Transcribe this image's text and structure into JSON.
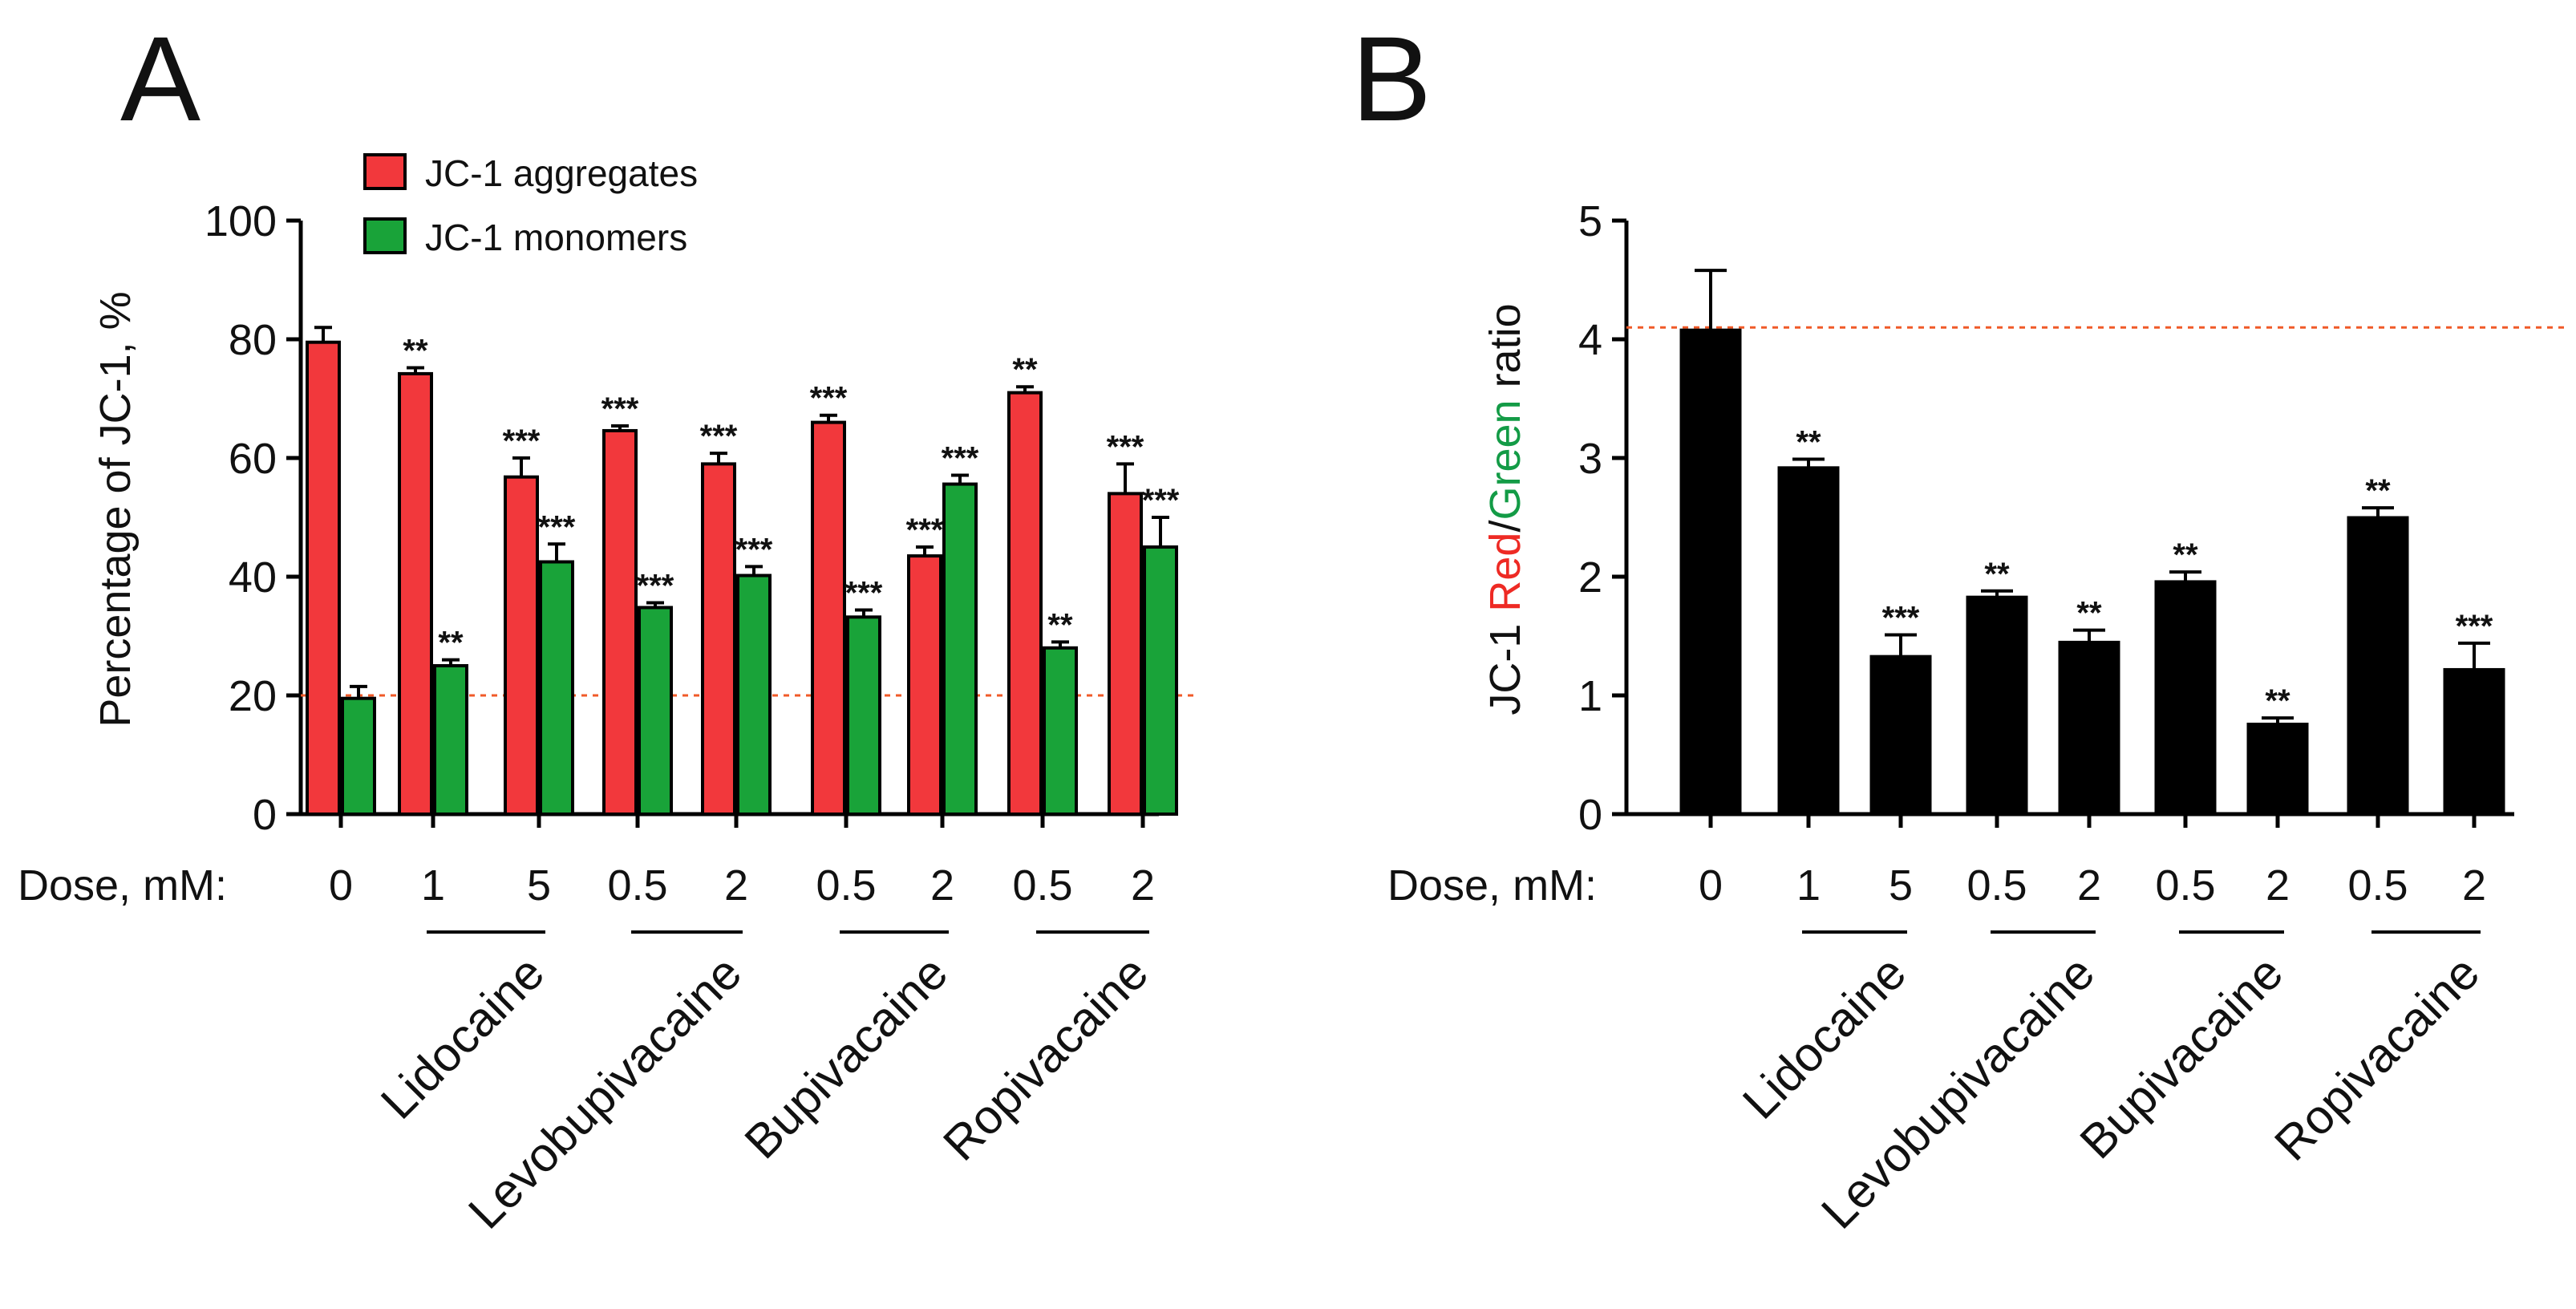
{
  "colors": {
    "aggregates": "#f2383c",
    "monomers": "#19a339",
    "black": "#000000",
    "refline": "#f05a28",
    "red_word": "#ee2a24",
    "green_word": "#139b46"
  },
  "dose_prefix": "Dose, mM:",
  "chart_data": [
    {
      "panel": "A",
      "type": "bar",
      "ylabel": "Percentage of JC-1, %",
      "ylim": [
        0,
        100
      ],
      "yticks": [
        "0",
        "20",
        "40",
        "60",
        "80",
        "100"
      ],
      "reference_line": 20,
      "legend": [
        "JC-1 aggregates",
        "JC-1 monomers"
      ],
      "legend_position": "top-left",
      "doses": [
        "0",
        "1",
        "5",
        "0.5",
        "2",
        "0.5",
        "2",
        "0.5",
        "2"
      ],
      "drugs": [
        "Lidocaine",
        "Levobupivacaine",
        "Bupivacaine",
        "Ropivacaine"
      ],
      "series": [
        {
          "name": "JC-1 aggregates",
          "values": [
            79.5,
            74.2,
            56.8,
            64.6,
            59.0,
            66.0,
            43.5,
            71.0,
            54.0
          ],
          "errors": [
            2.5,
            1.0,
            3.2,
            0.8,
            1.8,
            1.2,
            1.5,
            1.0,
            5.0
          ],
          "sig": [
            "",
            "**",
            "***",
            "***",
            "***",
            "***",
            "***",
            "**",
            "***"
          ]
        },
        {
          "name": "JC-1 monomers",
          "values": [
            19.5,
            25.0,
            42.5,
            34.8,
            40.2,
            33.2,
            55.6,
            28.0,
            45.0
          ],
          "errors": [
            2.0,
            1.0,
            3.0,
            0.8,
            1.5,
            1.2,
            1.5,
            1.0,
            5.0
          ],
          "sig": [
            "",
            "**",
            "***",
            "***",
            "***",
            "***",
            "***",
            "**",
            "***"
          ]
        }
      ]
    },
    {
      "panel": "B",
      "type": "bar",
      "ylabel_parts": [
        "JC-1 ",
        "Red",
        "/",
        "Green",
        " ratio"
      ],
      "ylim": [
        0,
        5
      ],
      "yticks": [
        "0",
        "1",
        "2",
        "3",
        "4",
        "5"
      ],
      "reference_line": 4.1,
      "doses": [
        "0",
        "1",
        "5",
        "0.5",
        "2",
        "0.5",
        "2",
        "0.5",
        "2"
      ],
      "drugs": [
        "Lidocaine",
        "Levobupivacaine",
        "Bupivacaine",
        "Ropivacaine"
      ],
      "values": [
        4.08,
        2.92,
        1.33,
        1.83,
        1.45,
        1.96,
        0.76,
        2.5,
        1.22
      ],
      "errors": [
        0.5,
        0.07,
        0.18,
        0.05,
        0.1,
        0.08,
        0.05,
        0.08,
        0.22
      ],
      "sig": [
        "",
        "**",
        "***",
        "**",
        "**",
        "**",
        "**",
        "**",
        "***"
      ]
    }
  ]
}
